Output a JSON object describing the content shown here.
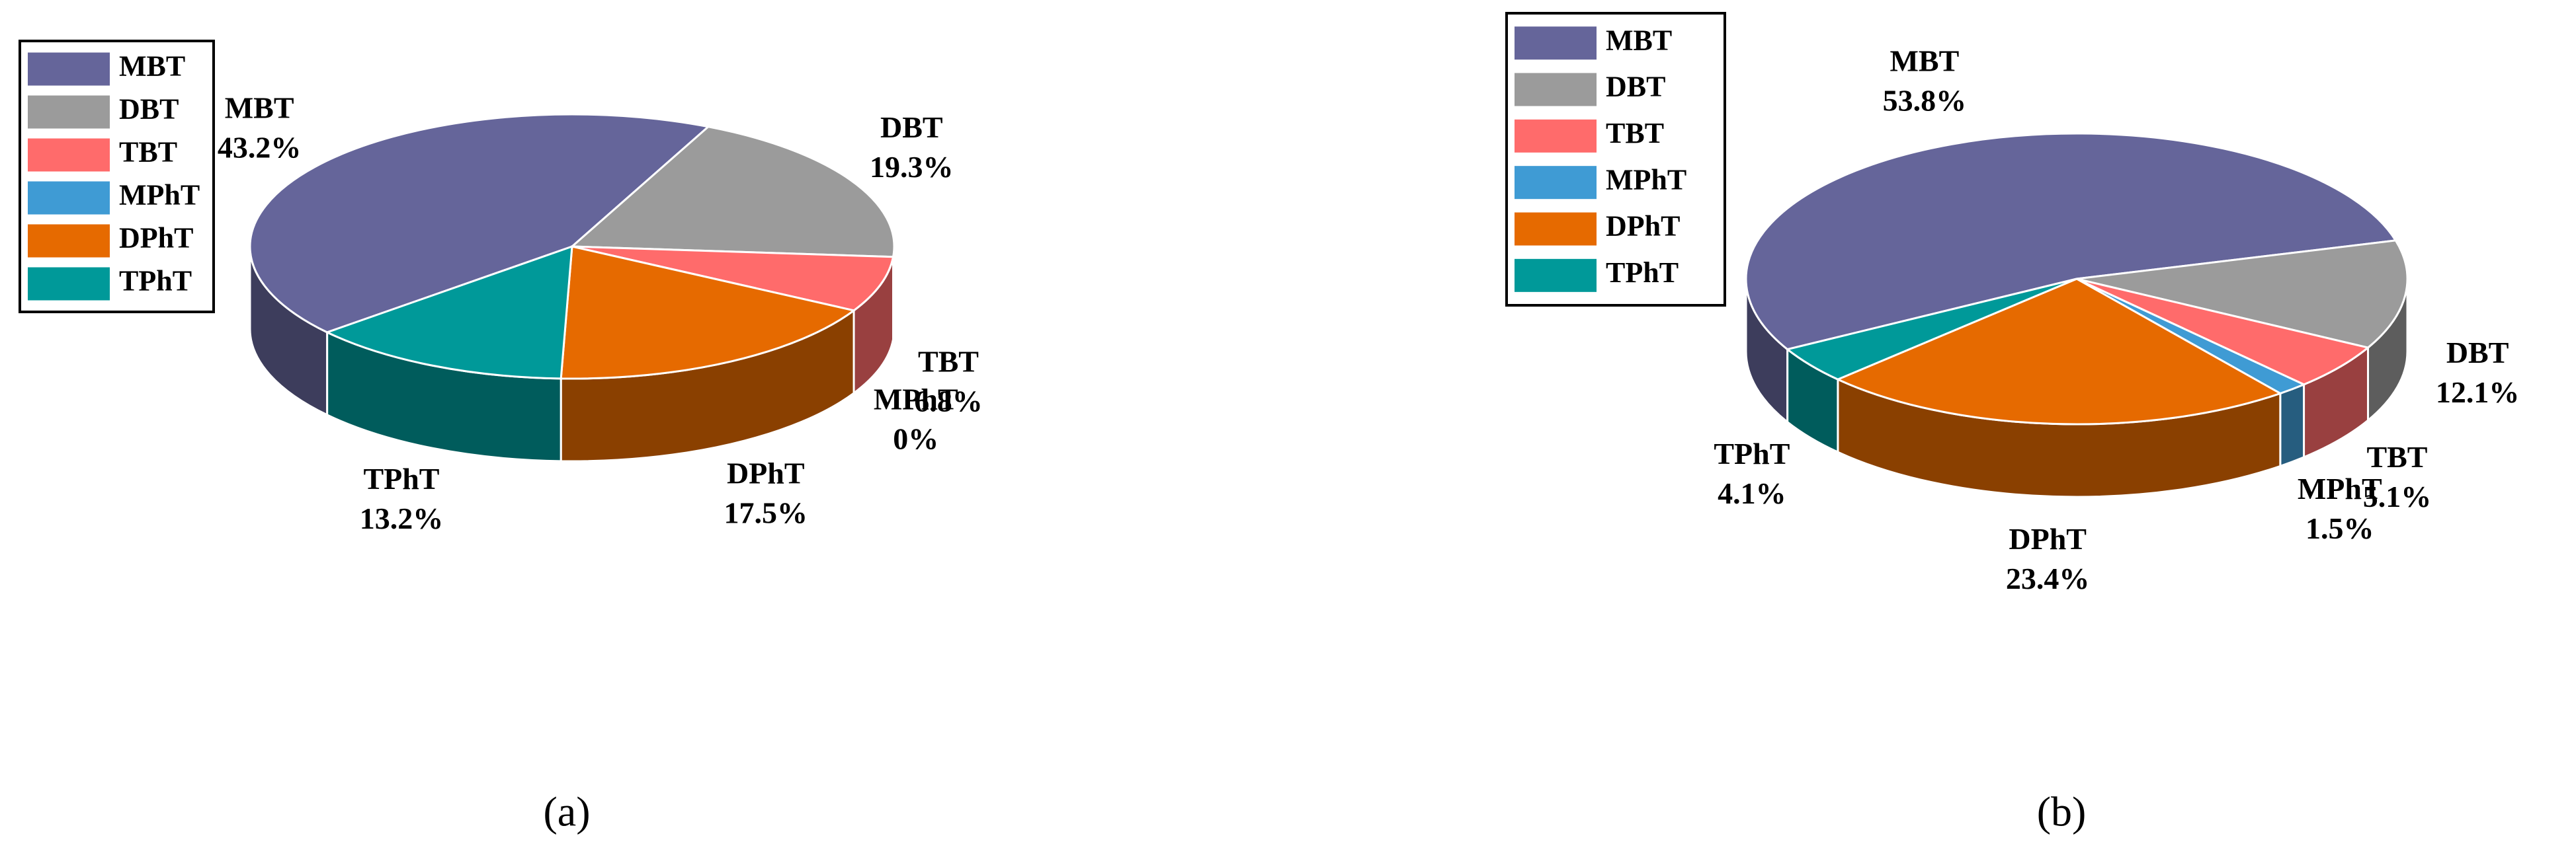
{
  "chart_data": [
    {
      "type": "pie",
      "caption": "(a)",
      "legend": "upper left",
      "categories": [
        "MBT",
        "DBT",
        "TBT",
        "MPhT",
        "DPhT",
        "TPhT"
      ],
      "values": [
        43.2,
        19.3,
        6.8,
        0,
        17.5,
        13.2
      ],
      "value_labels": [
        "43.2%",
        "19.3%",
        "6.8%",
        "0%",
        "17.5%",
        "13.2%"
      ],
      "colors": [
        "#65659a",
        "#9b9b9b",
        "#ff6b6b",
        "#3f9bd4",
        "#e66a00",
        "#009999"
      ]
    },
    {
      "type": "pie",
      "caption": "(b)",
      "legend": "upper left",
      "categories": [
        "MBT",
        "DBT",
        "TBT",
        "MPhT",
        "DPhT",
        "TPhT"
      ],
      "values": [
        53.8,
        12.1,
        5.1,
        1.5,
        23.4,
        4.1
      ],
      "value_labels": [
        "53.8%",
        "12.1%",
        "5.1%",
        "1.5%",
        "23.4%",
        "4.1%"
      ],
      "colors": [
        "#65659a",
        "#9b9b9b",
        "#ff6b6b",
        "#3f9bd4",
        "#e66a00",
        "#009999"
      ]
    }
  ]
}
